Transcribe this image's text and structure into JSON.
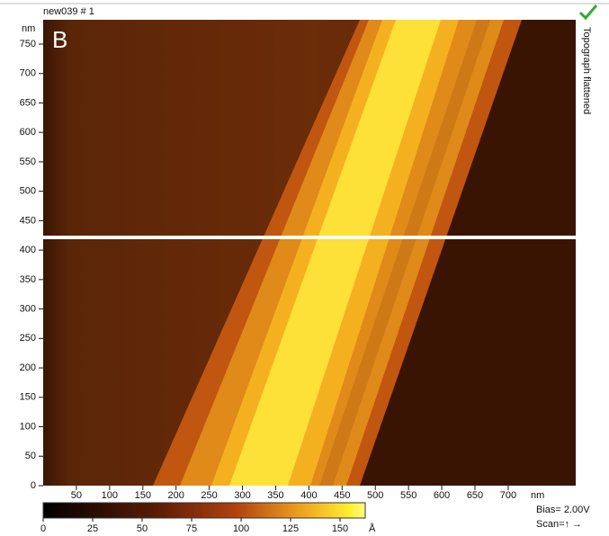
{
  "header": {
    "title": "new039 # 1",
    "panel_label": "B",
    "side_label": "Topograph flattened"
  },
  "y_axis": {
    "unit": "nm",
    "ticks": [
      0,
      50,
      100,
      150,
      200,
      250,
      300,
      350,
      400,
      450,
      500,
      550,
      600,
      650,
      700,
      750
    ]
  },
  "x_axis": {
    "unit": "nm",
    "ticks": [
      50,
      100,
      150,
      200,
      250,
      300,
      350,
      400,
      450,
      500,
      550,
      600,
      650,
      700
    ]
  },
  "colorbar": {
    "unit": "Å",
    "ticks": [
      0,
      25,
      50,
      75,
      100,
      125,
      150
    ]
  },
  "footer": {
    "bias": "Bias= 2.00V",
    "scan": "Scan=↑ →"
  }
}
